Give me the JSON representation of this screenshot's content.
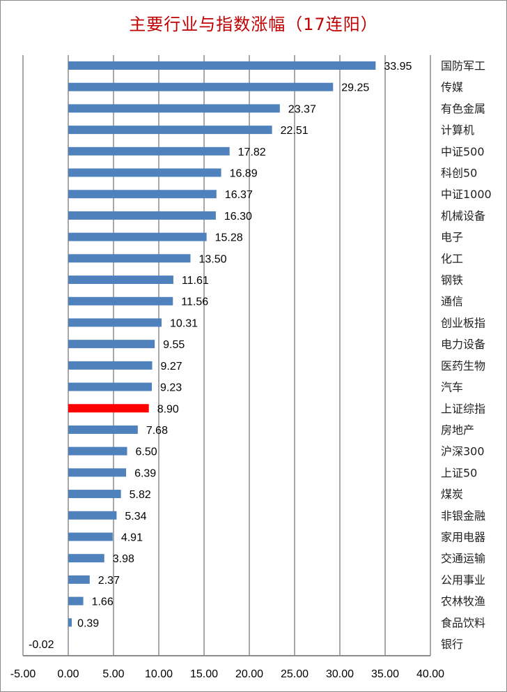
{
  "chart_data": {
    "type": "bar",
    "orientation": "horizontal",
    "title": "主要行业与指数涨幅（17连阳）",
    "categories": [
      "国防军工",
      "传媒",
      "有色金属",
      "计算机",
      "中证500",
      "科创50",
      "中证1000",
      "机械设备",
      "电子",
      "化工",
      "钢铁",
      "通信",
      "创业板指",
      "电力设备",
      "医药生物",
      "汽车",
      "上证综指",
      "房地产",
      "沪深300",
      "上证50",
      "煤炭",
      "非银金融",
      "家用电器",
      "交通运输",
      "公用事业",
      "农林牧渔",
      "食品饮料",
      "银行"
    ],
    "values": [
      33.95,
      29.25,
      23.37,
      22.51,
      17.82,
      16.89,
      16.37,
      16.3,
      15.28,
      13.5,
      11.61,
      11.56,
      10.31,
      9.55,
      9.27,
      9.23,
      8.9,
      7.68,
      6.5,
      6.39,
      5.82,
      5.34,
      4.91,
      3.98,
      2.37,
      1.66,
      0.39,
      -0.02
    ],
    "value_labels": [
      "33.95",
      "29.25",
      "23.37",
      "22.51",
      "17.82",
      "16.89",
      "16.37",
      "16.30",
      "15.28",
      "13.50",
      "11.61",
      "11.56",
      "10.31",
      "9.55",
      "9.27",
      "9.23",
      "8.90",
      "7.68",
      "6.50",
      "6.39",
      "5.82",
      "5.34",
      "4.91",
      "3.98",
      "2.37",
      "1.66",
      "0.39",
      "-0.02"
    ],
    "xlim": [
      -5,
      40
    ],
    "x_ticks": [
      "-5.00",
      "0.00",
      "5.00",
      "10.00",
      "15.00",
      "20.00",
      "25.00",
      "30.00",
      "35.00",
      "40.00"
    ],
    "grid": "vertical",
    "legend": "none",
    "colors": {
      "bar": "#4f81bd",
      "highlight": "#ff0000",
      "highlight_category": "上证综指",
      "title": "#c00000"
    }
  }
}
